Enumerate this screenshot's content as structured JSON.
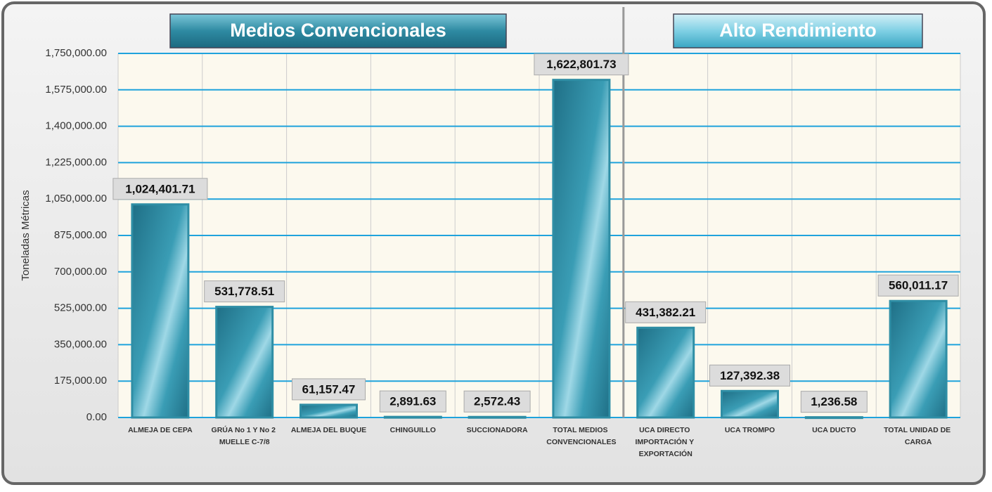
{
  "chart_data": {
    "type": "bar",
    "section_labels": [
      "Medios Convencionales",
      "Alto Rendimiento"
    ],
    "y_label": "Toneladas Métricas",
    "categories": [
      "ALMEJA DE CEPA",
      "GRÚA No 1 Y No 2 MUELLE C-7/8",
      "ALMEJA DEL BUQUE",
      "CHINGUILLO",
      "SUCCIONADORA",
      "TOTAL MEDIOS CONVENCIONALES",
      "UCA DIRECTO IMPORTACIÓN Y EXPORTACIÓN",
      "UCA TROMPO",
      "UCA DUCTO",
      "TOTAL UNIDAD DE CARGA"
    ],
    "values": [
      1024401.71,
      531778.51,
      61157.47,
      2891.63,
      2572.43,
      1622801.73,
      431382.21,
      127392.38,
      1236.58,
      560011.17
    ],
    "value_labels": [
      "1,024,401.71",
      "531,778.51",
      "61,157.47",
      "2,891.63",
      "2,572.43",
      "1,622,801.73",
      "431,382.21",
      "127,392.38",
      "1,236.58",
      "560,011.17"
    ],
    "color": "#2f8ea5",
    "ylim": [
      0,
      1750000
    ],
    "yticks": [
      {
        "value": 0,
        "label": "0.00"
      },
      {
        "value": 175000,
        "label": "175,000.00"
      },
      {
        "value": 350000,
        "label": "350,000.00"
      },
      {
        "value": 525000,
        "label": "525,000.00"
      },
      {
        "value": 700000,
        "label": "700,000.00"
      },
      {
        "value": 875000,
        "label": "875,000.00"
      },
      {
        "value": 1050000,
        "label": "1,050,000.00"
      },
      {
        "value": 1225000,
        "label": "1,225,000.00"
      },
      {
        "value": 1400000,
        "label": "1,400,000.00"
      },
      {
        "value": 1575000,
        "label": "1,575,000.00"
      },
      {
        "value": 1750000,
        "label": "1,750,000.00"
      }
    ],
    "grid": true
  }
}
